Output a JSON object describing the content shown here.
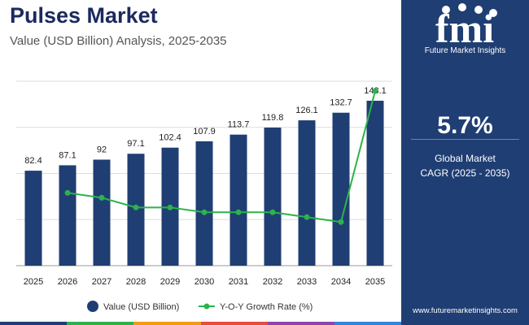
{
  "header": {
    "title": "Pulses Market",
    "subtitle": "Value (USD Billion) Analysis, 2025-2035"
  },
  "sidebar": {
    "logo_text": "fmi",
    "logo_subtext": "Future Market Insights",
    "cagr_value": "5.7%",
    "cagr_label_line1": "Global Market",
    "cagr_label_line2": "CAGR (2025 - 2035)",
    "website": "www.futuremarketinsights.com"
  },
  "colors": {
    "bar": "#1f3e73",
    "line": "#2bb34a",
    "sidebar_bg": "#1f3e73",
    "accent_stripe": [
      "#1f3e73",
      "#2bb34a",
      "#f39c12",
      "#e74c3c",
      "#8e44ad",
      "#2e86de"
    ]
  },
  "chart_data": {
    "type": "bar",
    "categories": [
      "2025",
      "2026",
      "2027",
      "2028",
      "2029",
      "2030",
      "2031",
      "2032",
      "2033",
      "2034",
      "2035"
    ],
    "series": [
      {
        "name": "Value (USD Billion)",
        "type": "bar",
        "values": [
          82.4,
          87.1,
          92,
          97.1,
          102.4,
          107.9,
          113.7,
          119.8,
          126.1,
          132.7,
          143.1
        ],
        "labels": [
          "82.4",
          "87.1",
          "92",
          "97.1",
          "102.4",
          "107.9",
          "113.7",
          "119.8",
          "126.1",
          "132.7",
          "143.1"
        ]
      },
      {
        "name": "Y-O-Y Growth Rate (%)",
        "type": "line",
        "values": [
          null,
          5.7,
          5.6,
          5.4,
          5.4,
          5.3,
          5.3,
          5.3,
          5.2,
          5.1,
          7.8
        ]
      }
    ],
    "ylim": [
      0,
      160
    ],
    "y2lim": [
      4.2,
      8.0
    ],
    "grid": true,
    "legend": "bottom"
  }
}
